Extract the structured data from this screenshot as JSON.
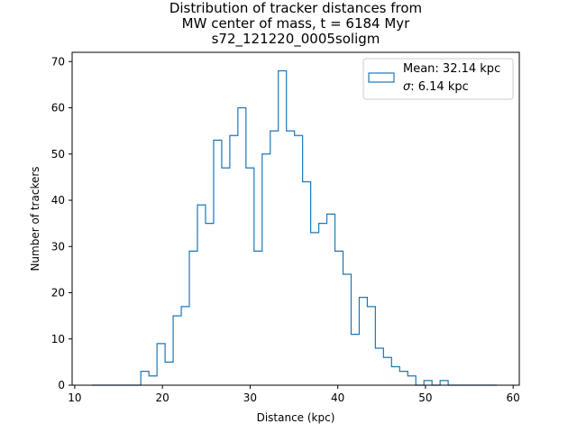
{
  "chart_data": {
    "type": "histogram",
    "title_lines": [
      "Distribution of tracker distances from",
      "MW center of mass, t = 6184 Myr",
      "s72_121220_0005soligm"
    ],
    "xlabel": "Distance (kpc)",
    "ylabel": "Number of trackers",
    "xlim": [
      9.7,
      60.7
    ],
    "ylim": [
      0,
      72
    ],
    "xticks": [
      10,
      20,
      30,
      40,
      50,
      60
    ],
    "yticks": [
      0,
      10,
      20,
      30,
      40,
      50,
      60,
      70
    ],
    "grid": false,
    "legend": {
      "placement": "upper right",
      "entries": [
        {
          "symbol": "Mean",
          "value": ": 32.14 kpc"
        },
        {
          "symbol": "σ",
          "value": ": 6.14 kpc"
        }
      ]
    },
    "series_color": "#1f77b4",
    "bin_start": 12.0,
    "bin_width": 0.9225,
    "counts": [
      0,
      0,
      0,
      0,
      0,
      0,
      3,
      2,
      9,
      5,
      15,
      17,
      29,
      39,
      35,
      53,
      47,
      54,
      60,
      47,
      29,
      50,
      55,
      68,
      55,
      54,
      44,
      33,
      35,
      37,
      29,
      24,
      11,
      19,
      17,
      8,
      6,
      4,
      3,
      2,
      0,
      1,
      0,
      1,
      0,
      0,
      0,
      0,
      0,
      0
    ]
  }
}
